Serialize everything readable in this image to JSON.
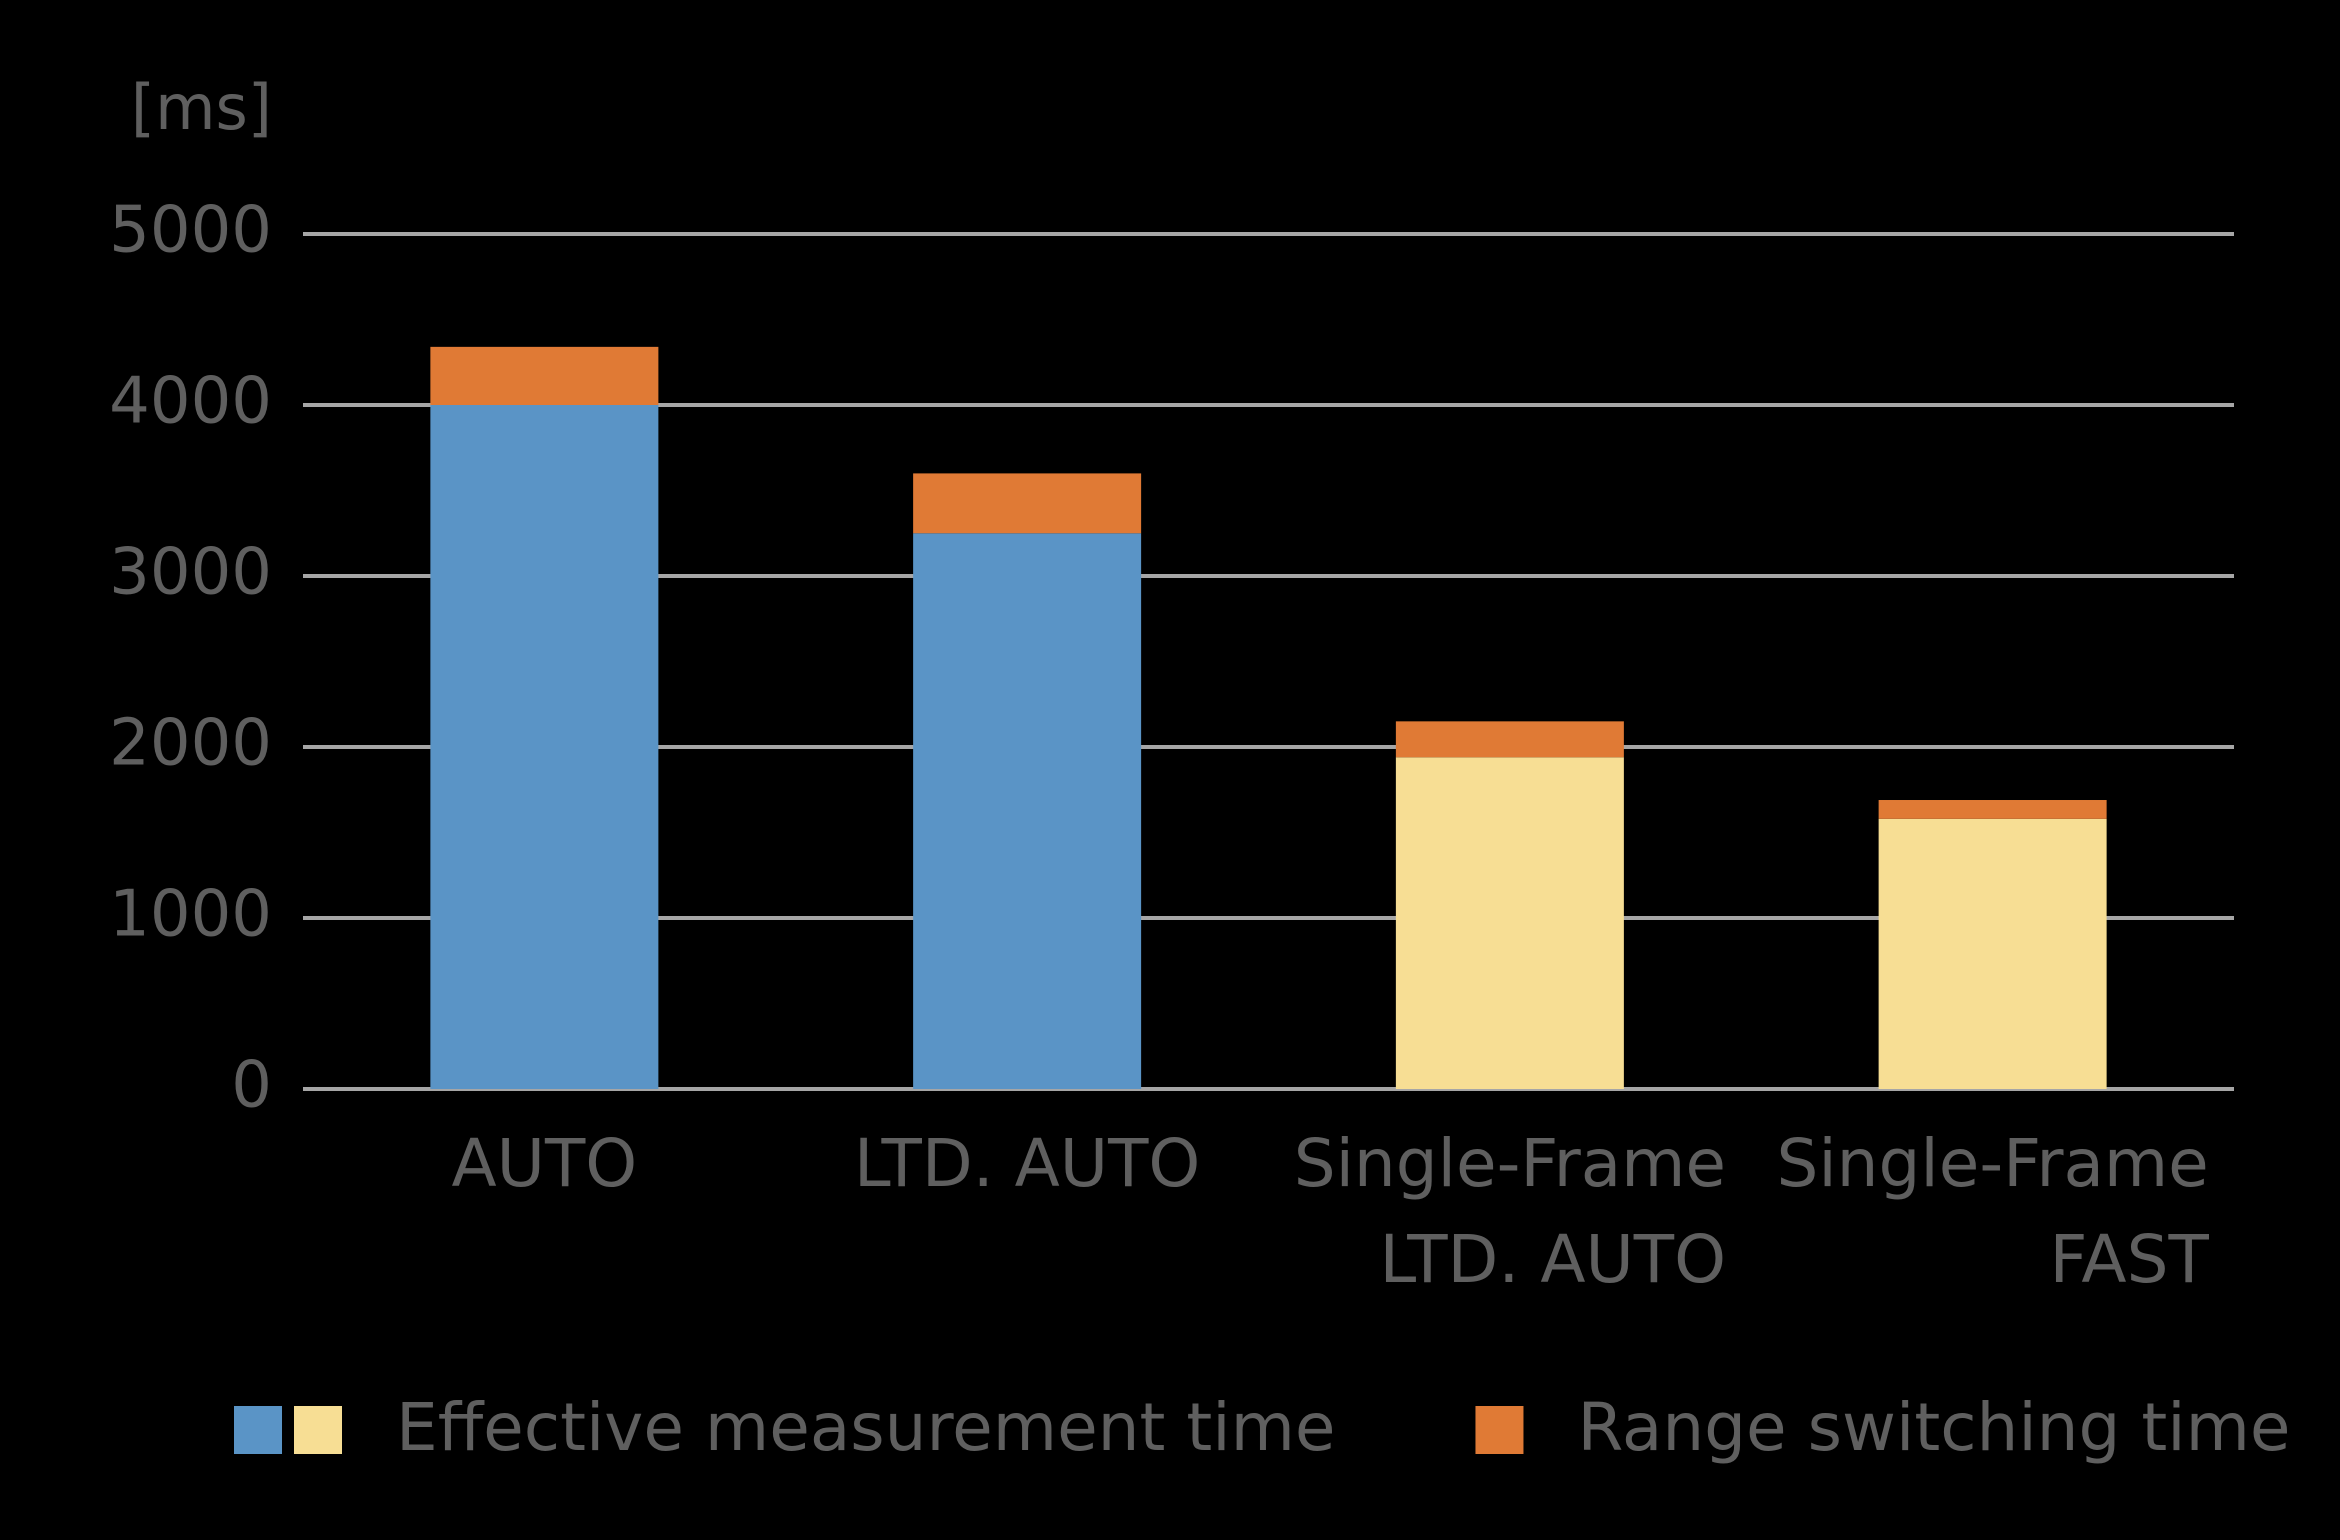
{
  "chart_data": {
    "type": "stacked-bar",
    "y_label": "[ms]",
    "categories": [
      [
        "AUTO"
      ],
      [
        "LTD. AUTO"
      ],
      [
        "Single-Frame",
        "LTD. AUTO"
      ],
      [
        "Single-Frame",
        "FAST"
      ]
    ],
    "series": [
      {
        "name": "Effective measurement time",
        "colors": [
          "#5a94c6",
          "#5a94c6",
          "#f7de94",
          "#f7de94"
        ],
        "values": [
          4000,
          3250,
          1940,
          1580
        ]
      },
      {
        "name": "Range switching time",
        "color": "#e07a35",
        "values": [
          340,
          350,
          210,
          110
        ]
      }
    ],
    "ylim": [
      0,
      5000
    ],
    "yticks": [
      0,
      1000,
      2000,
      3000,
      4000,
      5000
    ],
    "grid": true
  }
}
